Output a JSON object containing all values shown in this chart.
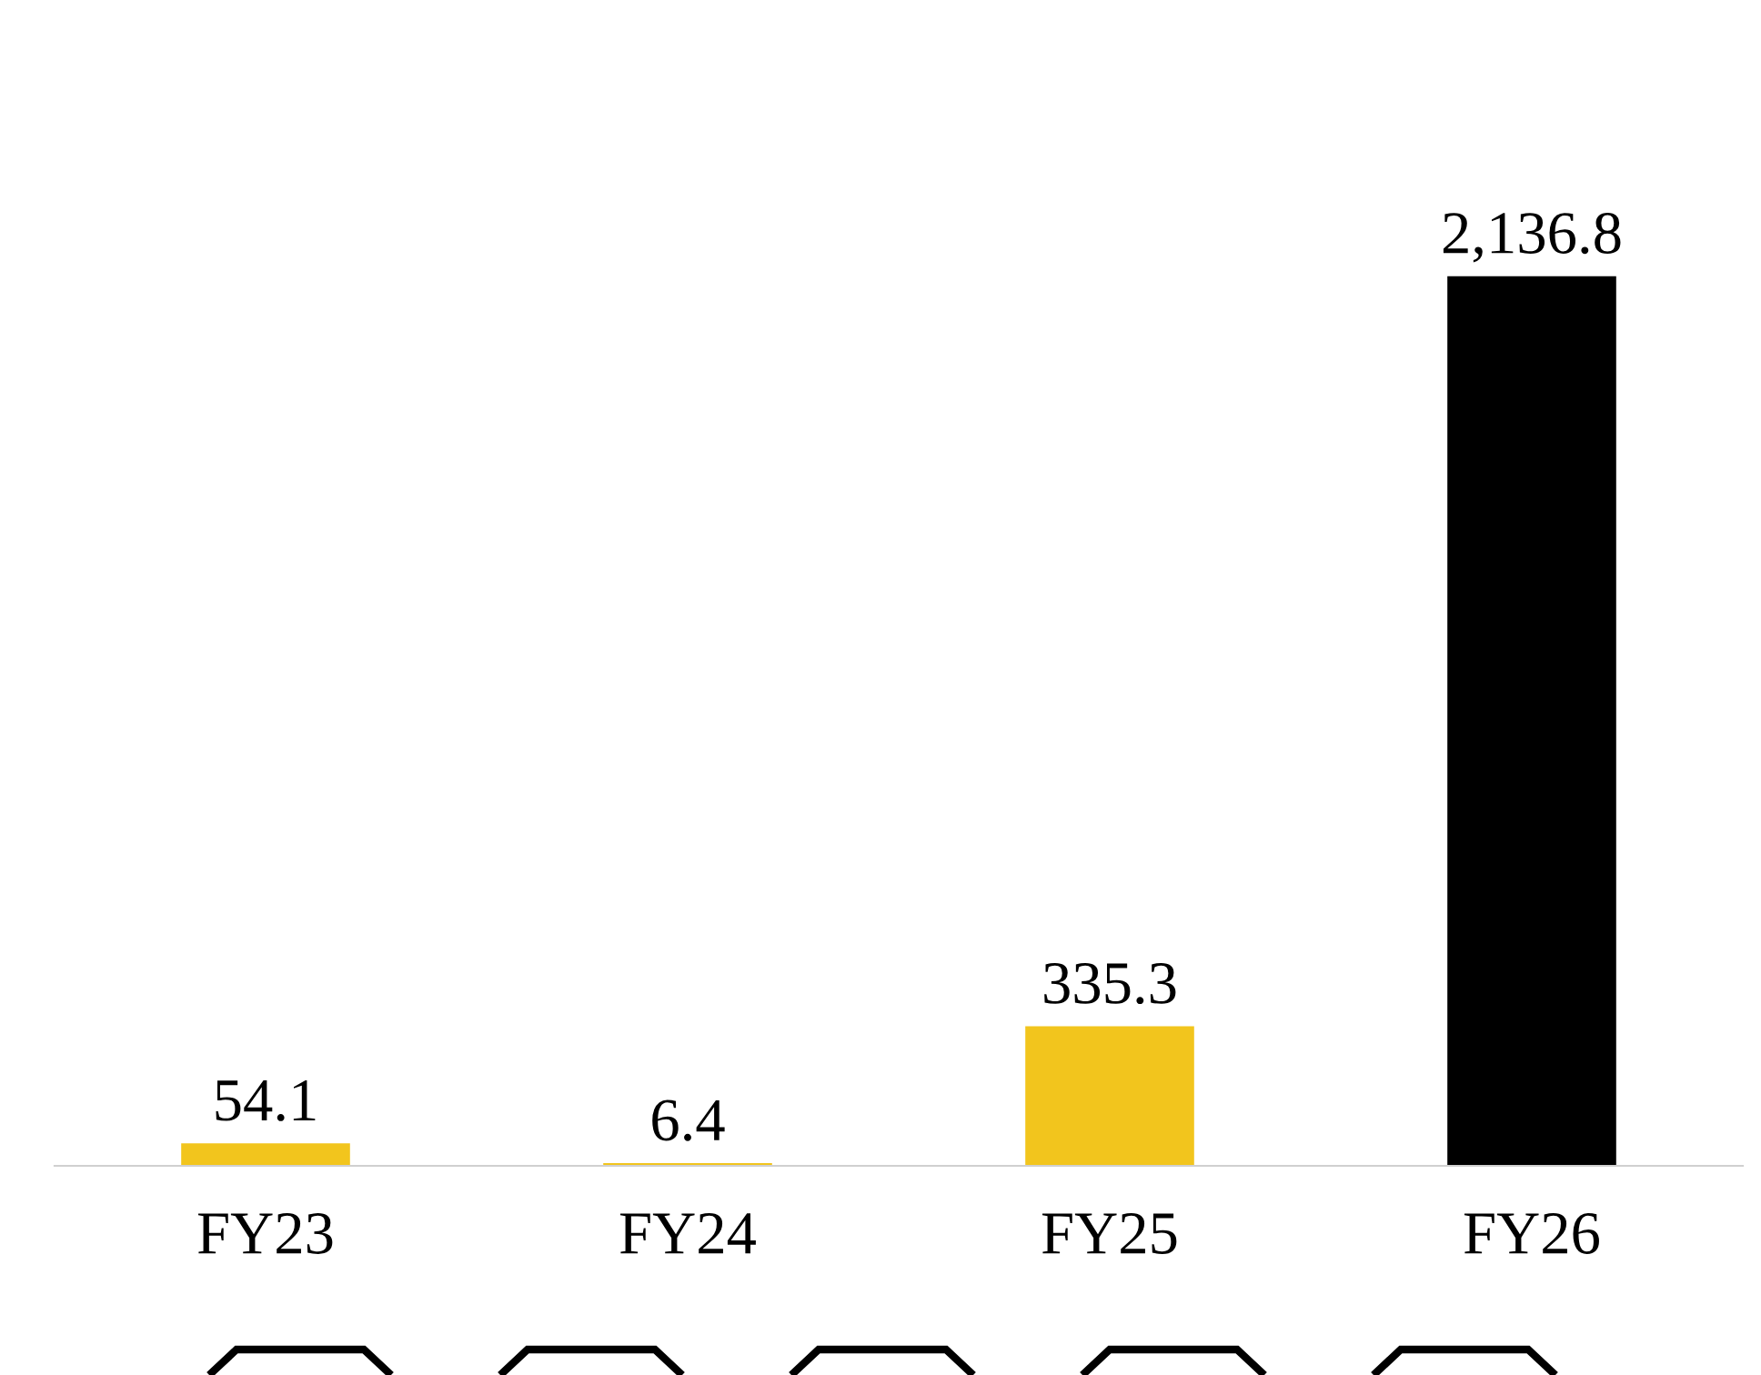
{
  "chart_data": {
    "type": "bar",
    "categories": [
      "FY23",
      "FY24",
      "FY25",
      "FY26"
    ],
    "values": [
      54.1,
      6.4,
      335.3,
      2136.8
    ],
    "colors": [
      "#f2c51d",
      "#f2c51d",
      "#f2c51d",
      "#000000"
    ],
    "value_labels": [
      "54.1",
      "6.4",
      "335.3",
      "2,136.8"
    ],
    "grid": false,
    "legend": false
  }
}
